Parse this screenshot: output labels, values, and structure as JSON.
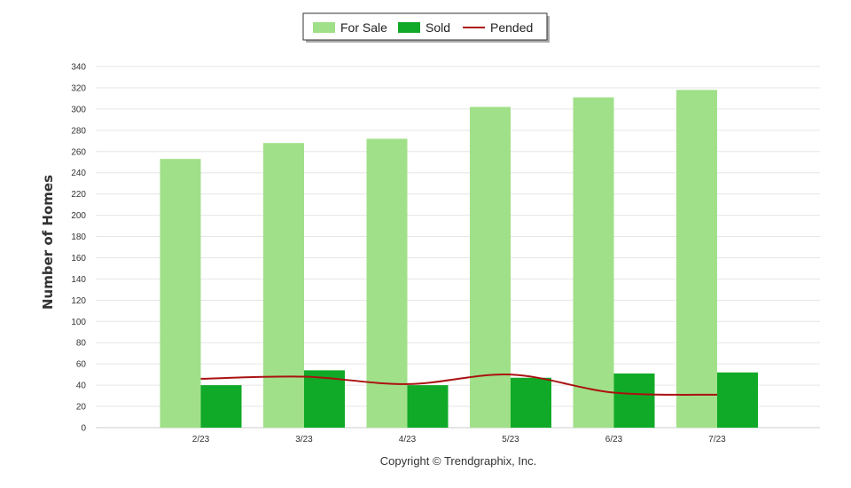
{
  "chart_data": {
    "type": "bar",
    "categories": [
      "2/23",
      "3/23",
      "4/23",
      "5/23",
      "6/23",
      "7/23"
    ],
    "series": [
      {
        "name": "For Sale",
        "type": "bar",
        "color": "#a0e088",
        "values": [
          253,
          268,
          272,
          302,
          311,
          318
        ]
      },
      {
        "name": "Sold",
        "type": "bar",
        "color": "#10aa28",
        "values": [
          40,
          54,
          40,
          47,
          51,
          52
        ]
      },
      {
        "name": "Pended",
        "type": "line",
        "color": "#aa1111",
        "values": [
          46,
          48,
          41,
          50,
          33,
          31
        ]
      }
    ],
    "ylabel": "Number of Homes",
    "xlabel": "",
    "ylim": [
      0,
      340
    ],
    "yticks": [
      0,
      20,
      40,
      60,
      80,
      100,
      120,
      140,
      160,
      180,
      200,
      220,
      240,
      260,
      280,
      300,
      320,
      340
    ],
    "grid": true,
    "legend": "top-center"
  },
  "footer": {
    "copyright": "Copyright © Trendgraphix, Inc."
  }
}
